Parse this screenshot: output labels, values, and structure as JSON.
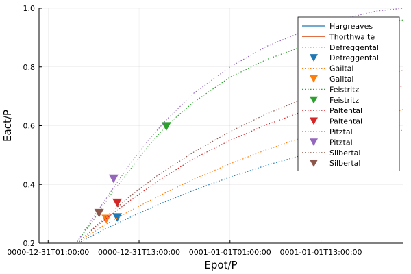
{
  "chart_data": {
    "type": "line",
    "title": "",
    "xlabel": "Epot/P",
    "ylabel": "Eact/P",
    "x_ticks": [
      "0000-12-31T01:00:00",
      "0000-12-31T13:00:00",
      "0001-01-01T01:00:00",
      "0001-01-01T13:00:00"
    ],
    "x_tick_values": [
      0.0,
      0.5,
      1.0,
      1.5
    ],
    "xlim": [
      -0.05,
      1.95
    ],
    "ylim": [
      0.2,
      1.0
    ],
    "y_ticks": [
      0.2,
      0.4,
      0.6,
      0.8,
      1.0
    ],
    "y_tick_labels": [
      "0.2",
      "0.4",
      "0.6",
      "0.8",
      "1.0"
    ],
    "grid": true,
    "legend_position": "top-right",
    "series": [
      {
        "name": "Hargreaves",
        "kind": "line",
        "color": "#1f77b4",
        "values": []
      },
      {
        "name": "Thorthwaite",
        "kind": "line",
        "color": "#e26f46",
        "values": []
      },
      {
        "name": "Defreggental",
        "kind": "dotted",
        "color": "#1f77b4",
        "x": [
          0.18,
          0.3,
          0.45,
          0.6,
          0.8,
          1.0,
          1.2,
          1.4,
          1.6,
          1.8,
          1.95
        ],
        "y": [
          0.205,
          0.244,
          0.288,
          0.33,
          0.38,
          0.425,
          0.465,
          0.5,
          0.533,
          0.563,
          0.585
        ]
      },
      {
        "name": "Defreggental",
        "kind": "marker",
        "color": "#1f77b4",
        "x": [
          0.38
        ],
        "y": [
          0.288
        ]
      },
      {
        "name": "Gailtal",
        "kind": "dotted",
        "color": "#ff7f0e",
        "x": [
          0.17,
          0.3,
          0.45,
          0.6,
          0.8,
          1.0,
          1.2,
          1.4,
          1.6,
          1.8,
          1.95
        ],
        "y": [
          0.205,
          0.258,
          0.31,
          0.358,
          0.418,
          0.47,
          0.518,
          0.56,
          0.598,
          0.632,
          0.655
        ]
      },
      {
        "name": "Gailtal",
        "kind": "marker",
        "color": "#ff7f0e",
        "x": [
          0.32
        ],
        "y": [
          0.283
        ]
      },
      {
        "name": "Feistritz",
        "kind": "dotted",
        "color": "#2ca02c",
        "x": [
          0.16,
          0.25,
          0.35,
          0.45,
          0.55,
          0.65,
          0.8,
          1.0,
          1.2,
          1.4,
          1.6,
          1.8,
          1.95
        ],
        "y": [
          0.205,
          0.28,
          0.37,
          0.45,
          0.53,
          0.6,
          0.68,
          0.765,
          0.825,
          0.87,
          0.91,
          0.94,
          0.96
        ]
      },
      {
        "name": "Feistritz",
        "kind": "marker",
        "color": "#2ca02c",
        "x": [
          0.65
        ],
        "y": [
          0.598
        ]
      },
      {
        "name": "Paltental",
        "kind": "dotted",
        "color": "#d62728",
        "x": [
          0.17,
          0.3,
          0.45,
          0.6,
          0.8,
          1.0,
          1.2,
          1.4,
          1.6,
          1.8,
          1.95
        ],
        "y": [
          0.205,
          0.275,
          0.345,
          0.41,
          0.488,
          0.55,
          0.603,
          0.648,
          0.685,
          0.715,
          0.735
        ]
      },
      {
        "name": "Paltental",
        "kind": "marker",
        "color": "#d62728",
        "x": [
          0.38
        ],
        "y": [
          0.338
        ]
      },
      {
        "name": "Pitztal",
        "kind": "dotted",
        "color": "#9467bd",
        "x": [
          0.16,
          0.25,
          0.35,
          0.45,
          0.55,
          0.65,
          0.8,
          1.0,
          1.2,
          1.4,
          1.6,
          1.8,
          1.95
        ],
        "y": [
          0.205,
          0.29,
          0.38,
          0.47,
          0.55,
          0.62,
          0.71,
          0.8,
          0.87,
          0.92,
          0.96,
          0.99,
          1.0
        ]
      },
      {
        "name": "Pitztal",
        "kind": "marker",
        "color": "#9467bd",
        "x": [
          0.36
        ],
        "y": [
          0.42
        ]
      },
      {
        "name": "Silbertal",
        "kind": "dotted",
        "color": "#8c564b",
        "x": [
          0.17,
          0.3,
          0.45,
          0.6,
          0.8,
          1.0,
          1.2,
          1.4,
          1.6,
          1.8,
          1.95
        ],
        "y": [
          0.205,
          0.28,
          0.36,
          0.43,
          0.51,
          0.58,
          0.64,
          0.69,
          0.73,
          0.765,
          0.788
        ]
      },
      {
        "name": "Silbertal",
        "kind": "marker",
        "color": "#8c564b",
        "x": [
          0.28
        ],
        "y": [
          0.303
        ]
      }
    ]
  }
}
